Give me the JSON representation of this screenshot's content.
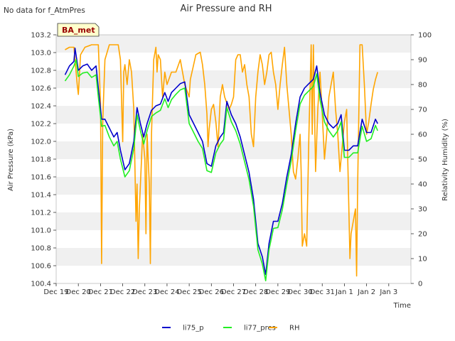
{
  "notice": "No data for f_AtmPres",
  "site_badge": "BA_met",
  "chart_data": {
    "type": "line",
    "title": "Air Pressure and RH",
    "xlabel": "Time",
    "ylabel_left": "Air Pressure (kPa)",
    "ylabel_right": "Relativity Humidity (%)",
    "ylim_left": [
      100.4,
      103.2
    ],
    "ylim_right": [
      0,
      100
    ],
    "xlim": [
      0,
      16
    ],
    "x_tick_labels": [
      "Dec 19",
      "Dec 20",
      "Dec 21",
      "Dec 22",
      "Dec 23",
      "Dec 24",
      "Dec 25",
      "Dec 26",
      "Dec 27",
      "Dec 28",
      "Dec 29",
      "Dec 30",
      "Dec 31",
      "Jan 1",
      "Jan 2",
      "Jan 3"
    ],
    "y_ticks_left": [
      "100.4",
      "100.6",
      "100.8",
      "101.0",
      "101.2",
      "101.4",
      "101.6",
      "101.8",
      "102.0",
      "102.2",
      "102.4",
      "102.6",
      "102.8",
      "103.0",
      "103.2"
    ],
    "y_ticks_right": [
      "0",
      "10",
      "20",
      "30",
      "40",
      "50",
      "60",
      "70",
      "80",
      "90",
      "100"
    ],
    "grid": "horizontal bands",
    "legend_position": "bottom",
    "series": [
      {
        "name": "li75_p",
        "axis": "left",
        "color": "#0000cc",
        "points": [
          [
            0.4,
            102.75
          ],
          [
            0.6,
            102.85
          ],
          [
            0.8,
            102.9
          ],
          [
            0.85,
            103.05
          ],
          [
            1.0,
            102.8
          ],
          [
            1.2,
            102.85
          ],
          [
            1.4,
            102.87
          ],
          [
            1.6,
            102.8
          ],
          [
            1.8,
            102.85
          ],
          [
            1.9,
            102.6
          ],
          [
            2.05,
            102.25
          ],
          [
            2.2,
            102.25
          ],
          [
            2.4,
            102.15
          ],
          [
            2.6,
            102.05
          ],
          [
            2.75,
            102.1
          ],
          [
            2.9,
            101.9
          ],
          [
            3.1,
            101.68
          ],
          [
            3.3,
            101.75
          ],
          [
            3.5,
            102.0
          ],
          [
            3.65,
            102.38
          ],
          [
            3.8,
            102.2
          ],
          [
            3.95,
            102.05
          ],
          [
            4.1,
            102.2
          ],
          [
            4.3,
            102.35
          ],
          [
            4.5,
            102.4
          ],
          [
            4.7,
            102.42
          ],
          [
            4.9,
            102.55
          ],
          [
            5.05,
            102.45
          ],
          [
            5.2,
            102.55
          ],
          [
            5.4,
            102.6
          ],
          [
            5.6,
            102.65
          ],
          [
            5.8,
            102.67
          ],
          [
            6.0,
            102.3
          ],
          [
            6.2,
            102.2
          ],
          [
            6.4,
            102.1
          ],
          [
            6.6,
            102.0
          ],
          [
            6.8,
            101.75
          ],
          [
            7.0,
            101.72
          ],
          [
            7.2,
            101.95
          ],
          [
            7.4,
            102.05
          ],
          [
            7.55,
            102.1
          ],
          [
            7.7,
            102.45
          ],
          [
            7.9,
            102.3
          ],
          [
            8.1,
            102.2
          ],
          [
            8.3,
            102.05
          ],
          [
            8.5,
            101.85
          ],
          [
            8.7,
            101.65
          ],
          [
            8.9,
            101.35
          ],
          [
            9.1,
            100.85
          ],
          [
            9.3,
            100.7
          ],
          [
            9.45,
            100.5
          ],
          [
            9.6,
            100.85
          ],
          [
            9.8,
            101.1
          ],
          [
            10.0,
            101.1
          ],
          [
            10.2,
            101.3
          ],
          [
            10.4,
            101.6
          ],
          [
            10.6,
            101.85
          ],
          [
            10.8,
            102.2
          ],
          [
            11.0,
            102.5
          ],
          [
            11.2,
            102.6
          ],
          [
            11.4,
            102.65
          ],
          [
            11.6,
            102.7
          ],
          [
            11.75,
            102.85
          ],
          [
            11.9,
            102.55
          ],
          [
            12.1,
            102.3
          ],
          [
            12.3,
            102.2
          ],
          [
            12.5,
            102.15
          ],
          [
            12.7,
            102.2
          ],
          [
            12.85,
            102.3
          ],
          [
            13.0,
            101.9
          ],
          [
            13.2,
            101.9
          ],
          [
            13.4,
            101.95
          ],
          [
            13.6,
            101.95
          ],
          [
            13.8,
            102.25
          ],
          [
            14.0,
            102.1
          ],
          [
            14.2,
            102.1
          ],
          [
            14.4,
            102.25
          ],
          [
            14.5,
            102.2
          ]
        ]
      },
      {
        "name": "li77_pres",
        "axis": "left",
        "color": "#22ee22",
        "points": [
          [
            0.4,
            102.68
          ],
          [
            0.6,
            102.75
          ],
          [
            0.8,
            102.85
          ],
          [
            0.9,
            102.92
          ],
          [
            1.0,
            102.73
          ],
          [
            1.2,
            102.77
          ],
          [
            1.4,
            102.78
          ],
          [
            1.6,
            102.72
          ],
          [
            1.8,
            102.75
          ],
          [
            1.9,
            102.5
          ],
          [
            2.05,
            102.17
          ],
          [
            2.2,
            102.18
          ],
          [
            2.4,
            102.05
          ],
          [
            2.6,
            101.95
          ],
          [
            2.75,
            102.0
          ],
          [
            2.9,
            101.8
          ],
          [
            3.1,
            101.6
          ],
          [
            3.3,
            101.67
          ],
          [
            3.5,
            101.92
          ],
          [
            3.65,
            102.3
          ],
          [
            3.8,
            102.12
          ],
          [
            3.95,
            101.97
          ],
          [
            4.1,
            102.12
          ],
          [
            4.3,
            102.28
          ],
          [
            4.5,
            102.32
          ],
          [
            4.7,
            102.35
          ],
          [
            4.9,
            102.48
          ],
          [
            5.05,
            102.38
          ],
          [
            5.2,
            102.47
          ],
          [
            5.4,
            102.53
          ],
          [
            5.6,
            102.58
          ],
          [
            5.8,
            102.6
          ],
          [
            6.0,
            102.2
          ],
          [
            6.2,
            102.1
          ],
          [
            6.4,
            102.0
          ],
          [
            6.6,
            101.92
          ],
          [
            6.8,
            101.67
          ],
          [
            7.0,
            101.65
          ],
          [
            7.2,
            101.87
          ],
          [
            7.4,
            101.97
          ],
          [
            7.55,
            102.02
          ],
          [
            7.7,
            102.38
          ],
          [
            7.9,
            102.22
          ],
          [
            8.1,
            102.12
          ],
          [
            8.3,
            101.97
          ],
          [
            8.5,
            101.77
          ],
          [
            8.7,
            101.57
          ],
          [
            8.9,
            101.27
          ],
          [
            9.1,
            100.78
          ],
          [
            9.3,
            100.62
          ],
          [
            9.45,
            100.43
          ],
          [
            9.6,
            100.78
          ],
          [
            9.8,
            101.02
          ],
          [
            10.0,
            101.03
          ],
          [
            10.2,
            101.23
          ],
          [
            10.4,
            101.52
          ],
          [
            10.6,
            101.78
          ],
          [
            10.8,
            102.12
          ],
          [
            11.0,
            102.42
          ],
          [
            11.2,
            102.52
          ],
          [
            11.4,
            102.57
          ],
          [
            11.6,
            102.62
          ],
          [
            11.75,
            102.76
          ],
          [
            11.9,
            102.47
          ],
          [
            12.1,
            102.22
          ],
          [
            12.3,
            102.12
          ],
          [
            12.5,
            102.05
          ],
          [
            12.7,
            102.12
          ],
          [
            12.85,
            102.22
          ],
          [
            13.0,
            101.82
          ],
          [
            13.2,
            101.82
          ],
          [
            13.4,
            101.87
          ],
          [
            13.6,
            101.87
          ],
          [
            13.8,
            102.17
          ],
          [
            14.0,
            102.0
          ],
          [
            14.2,
            102.03
          ],
          [
            14.4,
            102.18
          ],
          [
            14.5,
            102.12
          ]
        ]
      },
      {
        "name": "RH",
        "axis": "right",
        "color": "#ffa500",
        "points": [
          [
            0.4,
            94
          ],
          [
            0.6,
            95
          ],
          [
            0.8,
            95
          ],
          [
            0.95,
            80
          ],
          [
            1.0,
            76
          ],
          [
            1.1,
            92
          ],
          [
            1.3,
            95
          ],
          [
            1.6,
            96
          ],
          [
            1.9,
            96
          ],
          [
            2.0,
            72
          ],
          [
            2.05,
            8
          ],
          [
            2.1,
            65
          ],
          [
            2.2,
            90
          ],
          [
            2.4,
            96
          ],
          [
            2.6,
            96
          ],
          [
            2.8,
            96
          ],
          [
            2.9,
            90
          ],
          [
            3.0,
            57
          ],
          [
            3.05,
            85
          ],
          [
            3.1,
            88
          ],
          [
            3.2,
            80
          ],
          [
            3.3,
            90
          ],
          [
            3.4,
            85
          ],
          [
            3.5,
            70
          ],
          [
            3.6,
            25
          ],
          [
            3.65,
            40
          ],
          [
            3.7,
            10
          ],
          [
            3.75,
            30
          ],
          [
            3.9,
            60
          ],
          [
            4.0,
            50
          ],
          [
            4.05,
            20
          ],
          [
            4.1,
            60
          ],
          [
            4.2,
            40
          ],
          [
            4.25,
            8
          ],
          [
            4.3,
            60
          ],
          [
            4.4,
            90
          ],
          [
            4.5,
            95
          ],
          [
            4.55,
            85
          ],
          [
            4.6,
            92
          ],
          [
            4.7,
            90
          ],
          [
            4.8,
            75
          ],
          [
            4.9,
            85
          ],
          [
            5.0,
            80
          ],
          [
            5.2,
            85
          ],
          [
            5.4,
            85
          ],
          [
            5.6,
            90
          ],
          [
            5.8,
            80
          ],
          [
            6.0,
            75
          ],
          [
            6.05,
            82
          ],
          [
            6.2,
            88
          ],
          [
            6.3,
            92
          ],
          [
            6.5,
            93
          ],
          [
            6.6,
            88
          ],
          [
            6.7,
            80
          ],
          [
            6.8,
            68
          ],
          [
            6.85,
            55
          ],
          [
            6.9,
            62
          ],
          [
            7.0,
            70
          ],
          [
            7.1,
            72
          ],
          [
            7.2,
            65
          ],
          [
            7.3,
            55
          ],
          [
            7.4,
            75
          ],
          [
            7.5,
            80
          ],
          [
            7.6,
            75
          ],
          [
            7.8,
            70
          ],
          [
            7.9,
            72
          ],
          [
            8.0,
            75
          ],
          [
            8.1,
            90
          ],
          [
            8.2,
            92
          ],
          [
            8.3,
            92
          ],
          [
            8.4,
            85
          ],
          [
            8.5,
            88
          ],
          [
            8.6,
            80
          ],
          [
            8.7,
            75
          ],
          [
            8.8,
            60
          ],
          [
            8.9,
            55
          ],
          [
            9.0,
            75
          ],
          [
            9.1,
            85
          ],
          [
            9.2,
            92
          ],
          [
            9.3,
            88
          ],
          [
            9.4,
            80
          ],
          [
            9.5,
            85
          ],
          [
            9.6,
            92
          ],
          [
            9.7,
            93
          ],
          [
            9.8,
            85
          ],
          [
            9.9,
            80
          ],
          [
            10.0,
            70
          ],
          [
            10.1,
            80
          ],
          [
            10.2,
            88
          ],
          [
            10.3,
            95
          ],
          [
            10.4,
            80
          ],
          [
            10.5,
            70
          ],
          [
            10.6,
            60
          ],
          [
            10.7,
            45
          ],
          [
            10.8,
            42
          ],
          [
            10.9,
            50
          ],
          [
            11.0,
            60
          ],
          [
            11.05,
            45
          ],
          [
            11.1,
            15
          ],
          [
            11.2,
            20
          ],
          [
            11.3,
            15
          ],
          [
            11.4,
            60
          ],
          [
            11.5,
            96
          ],
          [
            11.55,
            60
          ],
          [
            11.6,
            96
          ],
          [
            11.7,
            45
          ],
          [
            11.8,
            70
          ],
          [
            11.9,
            85
          ],
          [
            12.0,
            68
          ],
          [
            12.1,
            50
          ],
          [
            12.2,
            60
          ],
          [
            12.3,
            75
          ],
          [
            12.4,
            80
          ],
          [
            12.5,
            85
          ],
          [
            12.6,
            70
          ],
          [
            12.7,
            60
          ],
          [
            12.8,
            45
          ],
          [
            12.9,
            55
          ],
          [
            13.0,
            65
          ],
          [
            13.1,
            70
          ],
          [
            13.2,
            30
          ],
          [
            13.25,
            10
          ],
          [
            13.3,
            20
          ],
          [
            13.4,
            25
          ],
          [
            13.5,
            30
          ],
          [
            13.55,
            3
          ],
          [
            13.6,
            40
          ],
          [
            13.7,
            96
          ],
          [
            13.8,
            96
          ],
          [
            13.9,
            80
          ],
          [
            14.0,
            60
          ],
          [
            14.1,
            65
          ],
          [
            14.2,
            72
          ],
          [
            14.3,
            78
          ],
          [
            14.4,
            82
          ],
          [
            14.5,
            85
          ]
        ]
      }
    ]
  }
}
